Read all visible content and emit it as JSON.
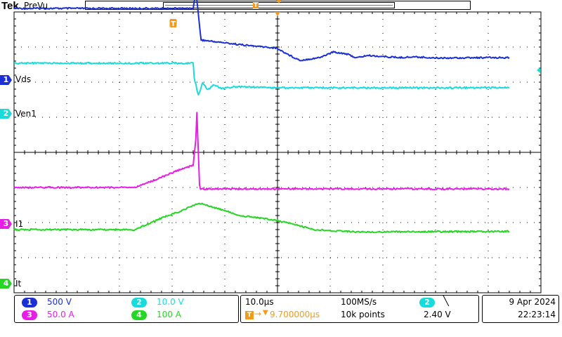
{
  "header": {
    "brand": "Tek",
    "status": "PreVu"
  },
  "colors": {
    "ch1": "#1b2fd6",
    "ch2": "#18dcdc",
    "ch3": "#e61ee6",
    "ch4": "#25d625",
    "trigger": "#f29a1a",
    "grid": "#000000"
  },
  "channels": [
    {
      "number": "1",
      "name": "Vds",
      "scale": "500 V"
    },
    {
      "number": "2",
      "name": "Ven1",
      "scale": "10.0 V"
    },
    {
      "number": "3",
      "name": "I1",
      "scale": "50.0 A"
    },
    {
      "number": "4",
      "name": "It",
      "scale": "100 A"
    }
  ],
  "trigger_marker": "T",
  "timebase": {
    "horizontal_scale": "10.0µs",
    "sample_rate": "100MS/s",
    "trigger_delay": "9.700000µs",
    "record_length": "10k points"
  },
  "trigger": {
    "source": "2",
    "slope_icon": "falling-edge-icon",
    "slope_glyph": "╲",
    "level": "2.40 V"
  },
  "datetime": {
    "date": "9 Apr  2024",
    "time": "22:23:14"
  },
  "chart_data": {
    "type": "line",
    "title": "",
    "grid": {
      "horizontal_divisions": 10,
      "vertical_divisions": 8
    },
    "x_units": "divisions",
    "y_units": "divisions",
    "series": [
      {
        "name": "Vds",
        "points": [
          [
            0,
            -0.1
          ],
          [
            3.4,
            -0.1
          ],
          [
            3.45,
            -0.6
          ],
          [
            3.55,
            0.8
          ],
          [
            4.4,
            0.95
          ],
          [
            4.98,
            1.03
          ],
          [
            5.25,
            1.25
          ],
          [
            5.43,
            1.38
          ],
          [
            5.8,
            1.3
          ],
          [
            6.06,
            1.14
          ],
          [
            6.3,
            1.19
          ],
          [
            6.5,
            1.31
          ],
          [
            6.7,
            1.24
          ],
          [
            7.0,
            1.27
          ],
          [
            7.3,
            1.3
          ],
          [
            7.6,
            1.28
          ],
          [
            8.0,
            1.31
          ],
          [
            9.4,
            1.3
          ]
        ]
      },
      {
        "name": "Ven1",
        "points": [
          [
            0,
            1.46
          ],
          [
            3.4,
            1.46
          ],
          [
            3.42,
            1.88
          ],
          [
            3.5,
            2.38
          ],
          [
            3.58,
            2.02
          ],
          [
            3.68,
            2.22
          ],
          [
            3.78,
            2.08
          ],
          [
            3.95,
            2.18
          ],
          [
            4.2,
            2.13
          ],
          [
            5.0,
            2.16
          ],
          [
            9.4,
            2.16
          ]
        ]
      },
      {
        "name": "I1",
        "points": [
          [
            0,
            5.0
          ],
          [
            2.3,
            5.0
          ],
          [
            2.7,
            4.77
          ],
          [
            3.1,
            4.52
          ],
          [
            3.4,
            4.37
          ],
          [
            3.45,
            3.6
          ],
          [
            3.47,
            2.88
          ],
          [
            3.52,
            4.92
          ],
          [
            3.54,
            5.04
          ],
          [
            9.4,
            5.04
          ]
        ]
      },
      {
        "name": "It",
        "points": [
          [
            0,
            6.2
          ],
          [
            2.3,
            6.2
          ],
          [
            2.8,
            5.87
          ],
          [
            3.2,
            5.65
          ],
          [
            3.5,
            5.45
          ],
          [
            3.6,
            5.48
          ],
          [
            3.75,
            5.55
          ],
          [
            4.3,
            5.8
          ],
          [
            5.0,
            5.94
          ],
          [
            5.7,
            6.2
          ],
          [
            6.5,
            6.27
          ],
          [
            9.4,
            6.25
          ]
        ]
      }
    ]
  }
}
